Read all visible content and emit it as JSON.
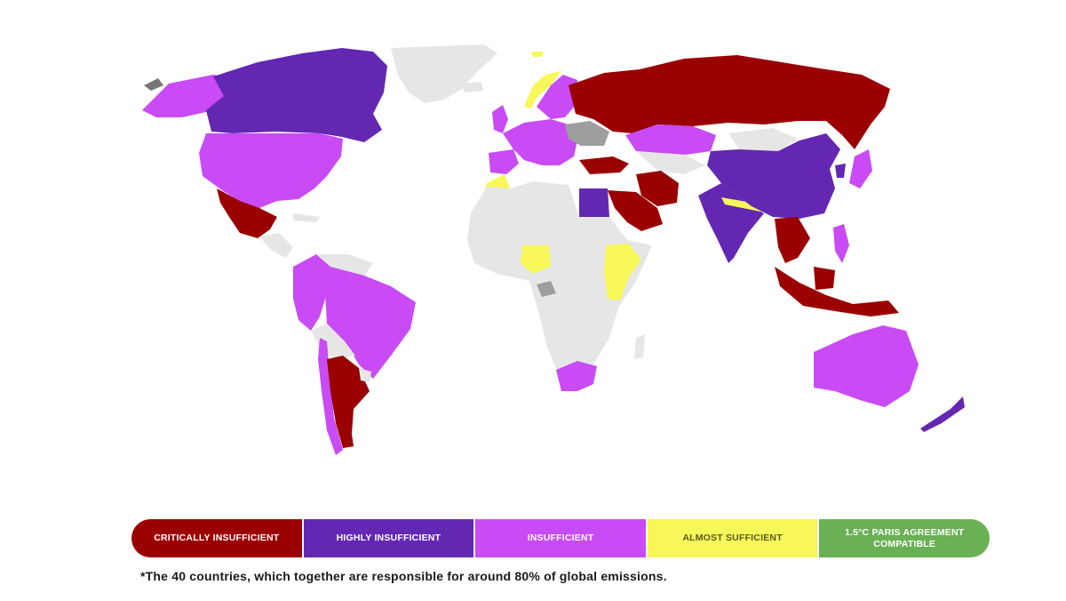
{
  "colors": {
    "critically_insufficient": "#9b0000",
    "highly_insufficient": "#6427b2",
    "insufficient": "#c84bf5",
    "almost_sufficient": "#f7f75a",
    "paris_compatible": "#6ab054",
    "not_rated": "#e6e6e6",
    "not_rated_dark": "#9e9e9e"
  },
  "legend": [
    {
      "label": "CRITICALLY INSUFFICIENT",
      "color": "#9b0000",
      "text_style": "dark"
    },
    {
      "label": "HIGHLY INSUFFICIENT",
      "color": "#6427b2",
      "text_style": "dark"
    },
    {
      "label": "INSUFFICIENT",
      "color": "#c84bf5",
      "text_style": "dark"
    },
    {
      "label": "ALMOST SUFFICIENT",
      "color": "#f7f75a",
      "text_style": "light"
    },
    {
      "label": "1.5°C PARIS AGREEMENT COMPATIBLE",
      "color": "#6ab054",
      "text_style": "dark"
    }
  ],
  "footnote": "*The 40 countries, which together are responsible for around 80% of global emissions."
}
